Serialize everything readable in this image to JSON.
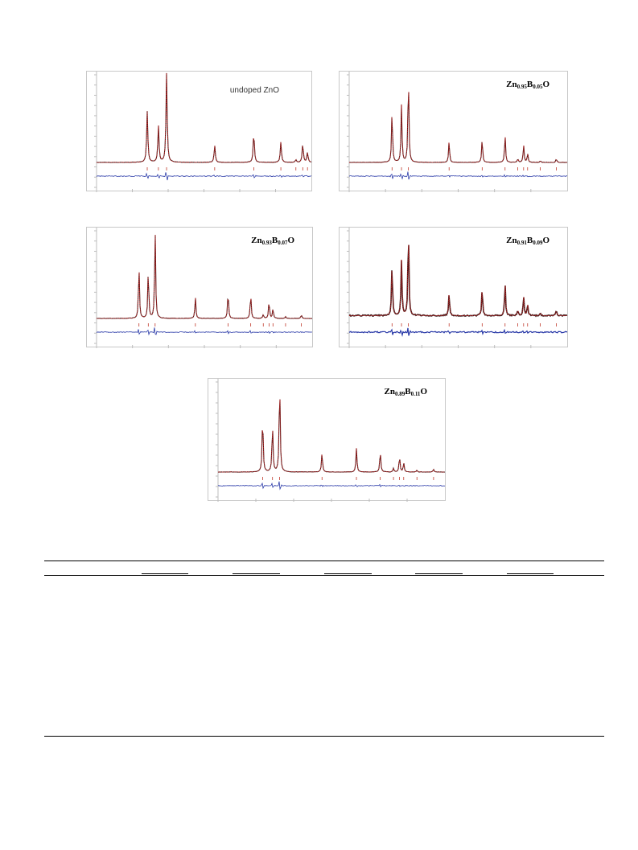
{
  "colors": {
    "observed": "#3a1a1a",
    "calculated": "#cc2222",
    "difference": "#2a3aa8",
    "bragg": "#c0392b",
    "axis": "#bdbdbd",
    "tick_text": "#b0b0b0"
  },
  "chart_data": [
    {
      "type": "line",
      "label": "undoped ZnO",
      "label_style": "plain",
      "peaks": [
        {
          "x": 31.8,
          "y": 0.57
        },
        {
          "x": 34.4,
          "y": 0.41
        },
        {
          "x": 36.3,
          "y": 1.0
        },
        {
          "x": 47.5,
          "y": 0.19
        },
        {
          "x": 56.6,
          "y": 0.34
        },
        {
          "x": 62.9,
          "y": 0.23
        },
        {
          "x": 66.4,
          "y": 0.03
        },
        {
          "x": 68.0,
          "y": 0.21
        },
        {
          "x": 69.1,
          "y": 0.11
        }
      ],
      "xlim": [
        20,
        70
      ],
      "bragg_ticks": [
        31.8,
        34.4,
        36.3,
        47.5,
        56.6,
        62.9,
        66.4,
        68.0,
        69.1
      ]
    },
    {
      "type": "line",
      "label_parts": [
        "Zn",
        "0.95",
        "B",
        "0.05",
        "O"
      ],
      "label_style": "formula",
      "peaks": [
        {
          "x": 31.8,
          "y": 0.59
        },
        {
          "x": 34.4,
          "y": 0.64
        },
        {
          "x": 36.3,
          "y": 1.0
        },
        {
          "x": 47.5,
          "y": 0.24
        },
        {
          "x": 56.6,
          "y": 0.27
        },
        {
          "x": 62.9,
          "y": 0.31
        },
        {
          "x": 66.4,
          "y": 0.04
        },
        {
          "x": 68.0,
          "y": 0.2
        },
        {
          "x": 69.1,
          "y": 0.1
        },
        {
          "x": 72.6,
          "y": 0.02
        },
        {
          "x": 77.0,
          "y": 0.04
        }
      ],
      "xlim": [
        20,
        80
      ],
      "bragg_ticks": [
        31.8,
        34.4,
        36.3,
        47.5,
        56.6,
        62.9,
        66.4,
        68.0,
        69.1,
        72.6,
        77.0
      ]
    },
    {
      "type": "line",
      "label_parts": [
        "Zn",
        "0.93",
        "B",
        "0.07",
        "O"
      ],
      "label_style": "formula",
      "peaks": [
        {
          "x": 31.8,
          "y": 0.6
        },
        {
          "x": 34.4,
          "y": 0.55
        },
        {
          "x": 36.3,
          "y": 1.0
        },
        {
          "x": 47.5,
          "y": 0.24
        },
        {
          "x": 56.6,
          "y": 0.31
        },
        {
          "x": 62.9,
          "y": 0.28
        },
        {
          "x": 66.4,
          "y": 0.04
        },
        {
          "x": 68.0,
          "y": 0.2
        },
        {
          "x": 69.1,
          "y": 0.11
        },
        {
          "x": 72.6,
          "y": 0.02
        },
        {
          "x": 77.0,
          "y": 0.04
        }
      ],
      "xlim": [
        20,
        80
      ],
      "bragg_ticks": [
        31.8,
        34.4,
        36.3,
        47.5,
        56.6,
        62.9,
        66.4,
        68.0,
        69.1,
        72.6,
        77.0
      ]
    },
    {
      "type": "line",
      "label_parts": [
        "Zn",
        "0.91",
        "B",
        "0.09",
        "O"
      ],
      "label_style": "formula",
      "peaks": [
        {
          "x": 31.8,
          "y": 0.58
        },
        {
          "x": 34.4,
          "y": 0.62
        },
        {
          "x": 36.3,
          "y": 1.0
        },
        {
          "x": 47.5,
          "y": 0.25
        },
        {
          "x": 56.6,
          "y": 0.31
        },
        {
          "x": 62.9,
          "y": 0.37
        },
        {
          "x": 66.4,
          "y": 0.06
        },
        {
          "x": 68.0,
          "y": 0.22
        },
        {
          "x": 69.1,
          "y": 0.13
        },
        {
          "x": 72.6,
          "y": 0.03
        },
        {
          "x": 77.0,
          "y": 0.06
        }
      ],
      "xlim": [
        20,
        80
      ],
      "bragg_ticks": [
        31.8,
        34.4,
        36.3,
        47.5,
        56.6,
        62.9,
        66.4,
        68.0,
        69.1,
        72.6,
        77.0
      ]
    },
    {
      "type": "line",
      "label_parts": [
        "Zn",
        "0.89",
        "B",
        "0.11",
        "O"
      ],
      "label_style": "formula",
      "peaks": [
        {
          "x": 31.8,
          "y": 0.62
        },
        {
          "x": 34.4,
          "y": 0.52
        },
        {
          "x": 36.3,
          "y": 1.0
        },
        {
          "x": 47.5,
          "y": 0.21
        },
        {
          "x": 56.6,
          "y": 0.26
        },
        {
          "x": 62.9,
          "y": 0.23
        },
        {
          "x": 66.4,
          "y": 0.04
        },
        {
          "x": 68.0,
          "y": 0.17
        },
        {
          "x": 69.1,
          "y": 0.1
        },
        {
          "x": 72.6,
          "y": 0.02
        },
        {
          "x": 77.0,
          "y": 0.03
        }
      ],
      "xlim": [
        20,
        80
      ],
      "bragg_ticks": [
        31.8,
        34.4,
        36.3,
        47.5,
        56.6,
        62.9,
        66.4,
        68.0,
        69.1,
        72.6,
        77.0
      ]
    }
  ]
}
